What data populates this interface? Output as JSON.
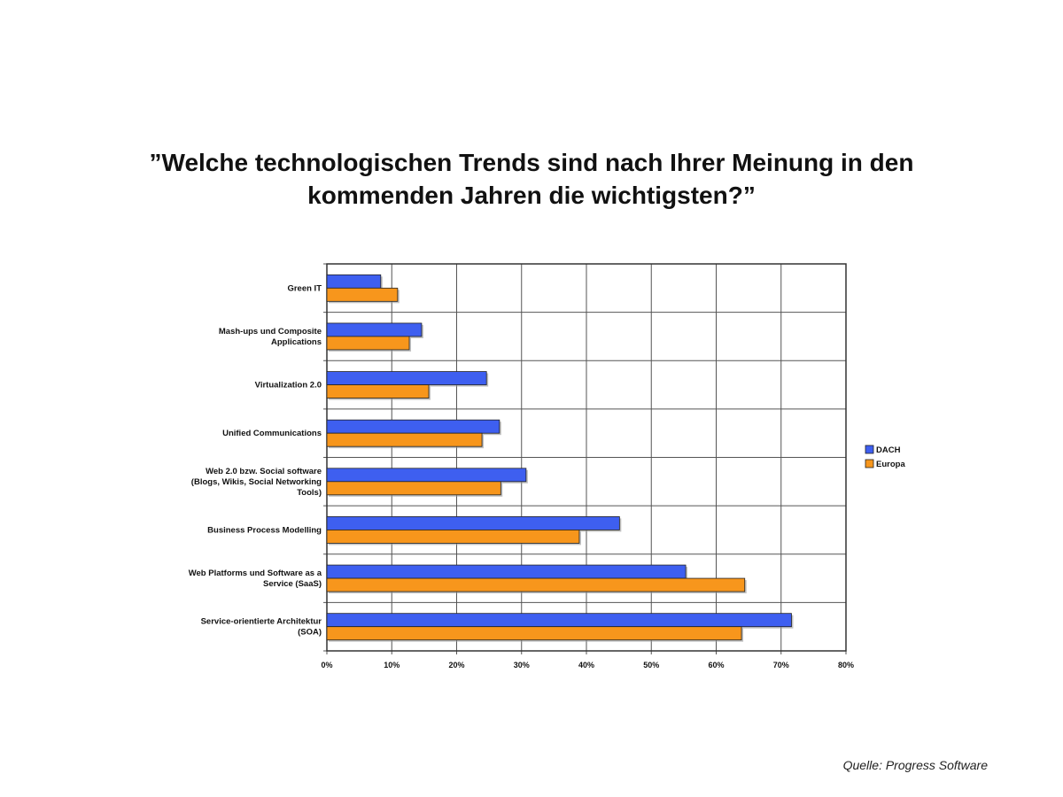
{
  "chart_data": {
    "type": "bar",
    "orientation": "horizontal",
    "title": "”Welche technologischen Trends sind nach Ihrer Meinung in den kommenden Jahren die wichtigsten?”",
    "categories": [
      [
        "Green IT"
      ],
      [
        "Mash-ups und Composite",
        "Applications"
      ],
      [
        "Virtualization 2.0"
      ],
      [
        "Unified Communications"
      ],
      [
        "Web 2.0 bzw. Social software",
        "(Blogs, Wikis, Social Networking",
        "Tools)"
      ],
      [
        "Business Process Modelling"
      ],
      [
        "Web Platforms und Software as a",
        "Service (SaaS)"
      ],
      [
        "Service-orientierte Architektur",
        "(SOA)"
      ]
    ],
    "series": [
      {
        "name": "DACH",
        "color": "#3e5ff0",
        "values": [
          8.3,
          14.6,
          24.6,
          26.6,
          30.7,
          45.1,
          55.3,
          71.6
        ]
      },
      {
        "name": "Europa",
        "color": "#f7961c",
        "values": [
          10.9,
          12.7,
          15.7,
          23.9,
          26.8,
          38.9,
          64.4,
          63.9
        ]
      }
    ],
    "xlim": [
      0,
      80
    ],
    "xticks": [
      "0%",
      "10%",
      "20%",
      "30%",
      "40%",
      "50%",
      "60%",
      "70%",
      "80%"
    ],
    "grid": true,
    "legend_position": "right"
  },
  "source": "Quelle: Progress Software"
}
